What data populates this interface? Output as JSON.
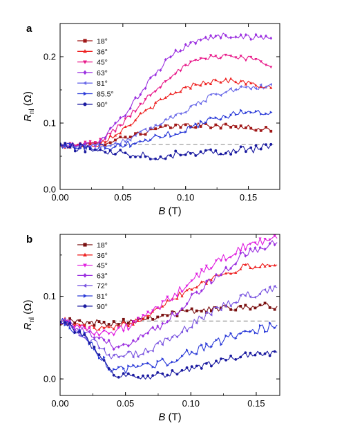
{
  "chart_data": [
    {
      "panel_label": "a",
      "type": "line",
      "xlabel": "B (T)",
      "xlabel_parts": {
        "italic": "B",
        "rest": " (T)"
      },
      "ylabel_parts": {
        "main": "R",
        "sub": "nl",
        "rest": " (Ω)"
      },
      "xlim": [
        0,
        0.175
      ],
      "ylim": [
        0,
        0.25
      ],
      "xticks": [
        0,
        0.05,
        0.1,
        0.15
      ],
      "xtick_labels": [
        "0.00",
        "0.05",
        "0.10",
        "0.15"
      ],
      "yticks": [
        0,
        0.1,
        0.2
      ],
      "ytick_labels": [
        "0.0",
        "0.1",
        "0.2"
      ],
      "legend_position": "top-left",
      "reference_line": {
        "y": 0.068,
        "x_range": [
          0.04,
          0.17
        ],
        "style": "dashed",
        "color": "#9e9e9e"
      },
      "x_range": [
        0,
        0.168
      ],
      "n_points": 85,
      "series": [
        {
          "name": "18°",
          "color": "#a01818",
          "marker": "square",
          "knots": [
            [
              0,
              0.066
            ],
            [
              0.03,
              0.068
            ],
            [
              0.05,
              0.078
            ],
            [
              0.08,
              0.092
            ],
            [
              0.1,
              0.097
            ],
            [
              0.12,
              0.096
            ],
            [
              0.14,
              0.095
            ],
            [
              0.168,
              0.09
            ]
          ],
          "noise": 0.004
        },
        {
          "name": "36°",
          "color": "#ee2222",
          "marker": "triangle",
          "knots": [
            [
              0,
              0.065
            ],
            [
              0.03,
              0.068
            ],
            [
              0.05,
              0.09
            ],
            [
              0.07,
              0.12
            ],
            [
              0.09,
              0.145
            ],
            [
              0.11,
              0.16
            ],
            [
              0.13,
              0.165
            ],
            [
              0.15,
              0.16
            ],
            [
              0.168,
              0.152
            ]
          ],
          "noise": 0.004
        },
        {
          "name": "45°",
          "color": "#e8198a",
          "marker": "triangle-down",
          "knots": [
            [
              0,
              0.066
            ],
            [
              0.03,
              0.07
            ],
            [
              0.05,
              0.1
            ],
            [
              0.07,
              0.14
            ],
            [
              0.09,
              0.175
            ],
            [
              0.11,
              0.195
            ],
            [
              0.13,
              0.202
            ],
            [
              0.15,
              0.198
            ],
            [
              0.168,
              0.188
            ]
          ],
          "noise": 0.004
        },
        {
          "name": "63°",
          "color": "#9b30e0",
          "marker": "diamond",
          "knots": [
            [
              0,
              0.066
            ],
            [
              0.03,
              0.068
            ],
            [
              0.05,
              0.11
            ],
            [
              0.07,
              0.16
            ],
            [
              0.09,
              0.205
            ],
            [
              0.11,
              0.225
            ],
            [
              0.13,
              0.232
            ],
            [
              0.15,
              0.23
            ],
            [
              0.168,
              0.228
            ]
          ],
          "noise": 0.004
        },
        {
          "name": "81°",
          "color": "#6a6ae8",
          "marker": "triangle-left",
          "knots": [
            [
              0,
              0.066
            ],
            [
              0.04,
              0.066
            ],
            [
              0.06,
              0.08
            ],
            [
              0.08,
              0.1
            ],
            [
              0.1,
              0.12
            ],
            [
              0.12,
              0.14
            ],
            [
              0.14,
              0.152
            ],
            [
              0.168,
              0.155
            ]
          ],
          "noise": 0.004
        },
        {
          "name": "85.5°",
          "color": "#2a3ad8",
          "marker": "triangle-right",
          "knots": [
            [
              0,
              0.066
            ],
            [
              0.04,
              0.064
            ],
            [
              0.06,
              0.07
            ],
            [
              0.08,
              0.08
            ],
            [
              0.1,
              0.09
            ],
            [
              0.12,
              0.105
            ],
            [
              0.14,
              0.115
            ],
            [
              0.168,
              0.118
            ]
          ],
          "noise": 0.005
        },
        {
          "name": "90°",
          "color": "#1a1aa0",
          "marker": "circle",
          "knots": [
            [
              0,
              0.066
            ],
            [
              0.03,
              0.06
            ],
            [
              0.05,
              0.055
            ],
            [
              0.08,
              0.05
            ],
            [
              0.1,
              0.055
            ],
            [
              0.13,
              0.058
            ],
            [
              0.15,
              0.06
            ],
            [
              0.168,
              0.065
            ]
          ],
          "noise": 0.006
        }
      ]
    },
    {
      "panel_label": "b",
      "type": "line",
      "xlabel": "B (T)",
      "xlabel_parts": {
        "italic": "B",
        "rest": " (T)"
      },
      "ylabel_parts": {
        "main": "R",
        "sub": "nl",
        "rest": " (Ω)"
      },
      "xlim": [
        0,
        0.168
      ],
      "ylim": [
        -0.02,
        0.175
      ],
      "xticks": [
        0,
        0.05,
        0.1,
        0.15
      ],
      "xtick_labels": [
        "0.00",
        "0.05",
        "0.10",
        "0.15"
      ],
      "yticks": [
        0,
        0.1
      ],
      "ytick_labels": [
        "0.0",
        "0.1"
      ],
      "legend_position": "top-left",
      "reference_line": {
        "y": 0.07,
        "x_range": [
          0.04,
          0.166
        ],
        "style": "dashed",
        "color": "#9e9e9e"
      },
      "x_range": [
        0,
        0.166
      ],
      "n_points": 90,
      "series": [
        {
          "name": "18°",
          "color": "#7a1010",
          "marker": "square",
          "knots": [
            [
              0,
              0.07
            ],
            [
              0.02,
              0.068
            ],
            [
              0.04,
              0.068
            ],
            [
              0.06,
              0.072
            ],
            [
              0.08,
              0.078
            ],
            [
              0.1,
              0.082
            ],
            [
              0.12,
              0.085
            ],
            [
              0.14,
              0.088
            ],
            [
              0.166,
              0.088
            ]
          ],
          "noise": 0.004
        },
        {
          "name": "36°",
          "color": "#ee2222",
          "marker": "triangle",
          "knots": [
            [
              0,
              0.072
            ],
            [
              0.02,
              0.062
            ],
            [
              0.04,
              0.06
            ],
            [
              0.06,
              0.072
            ],
            [
              0.08,
              0.092
            ],
            [
              0.1,
              0.11
            ],
            [
              0.12,
              0.125
            ],
            [
              0.14,
              0.135
            ],
            [
              0.166,
              0.138
            ]
          ],
          "noise": 0.004
        },
        {
          "name": "45°",
          "color": "#e020e0",
          "marker": "triangle-down",
          "knots": [
            [
              0,
              0.072
            ],
            [
              0.02,
              0.06
            ],
            [
              0.04,
              0.055
            ],
            [
              0.06,
              0.07
            ],
            [
              0.08,
              0.092
            ],
            [
              0.1,
              0.118
            ],
            [
              0.12,
              0.142
            ],
            [
              0.14,
              0.16
            ],
            [
              0.166,
              0.17
            ]
          ],
          "noise": 0.005
        },
        {
          "name": "63°",
          "color": "#9b30e0",
          "marker": "diamond",
          "knots": [
            [
              0,
              0.072
            ],
            [
              0.02,
              0.055
            ],
            [
              0.04,
              0.04
            ],
            [
              0.06,
              0.048
            ],
            [
              0.08,
              0.068
            ],
            [
              0.1,
              0.098
            ],
            [
              0.12,
              0.125
            ],
            [
              0.14,
              0.15
            ],
            [
              0.166,
              0.165
            ]
          ],
          "noise": 0.005
        },
        {
          "name": "72°",
          "color": "#7a55e0",
          "marker": "triangle-left",
          "knots": [
            [
              0,
              0.072
            ],
            [
              0.02,
              0.052
            ],
            [
              0.04,
              0.025
            ],
            [
              0.06,
              0.03
            ],
            [
              0.08,
              0.045
            ],
            [
              0.1,
              0.065
            ],
            [
              0.12,
              0.085
            ],
            [
              0.14,
              0.1
            ],
            [
              0.166,
              0.11
            ]
          ],
          "noise": 0.005
        },
        {
          "name": "81°",
          "color": "#2a3ad8",
          "marker": "triangle-right",
          "knots": [
            [
              0,
              0.072
            ],
            [
              0.02,
              0.05
            ],
            [
              0.04,
              0.01
            ],
            [
              0.06,
              0.012
            ],
            [
              0.08,
              0.02
            ],
            [
              0.1,
              0.032
            ],
            [
              0.12,
              0.045
            ],
            [
              0.14,
              0.055
            ],
            [
              0.166,
              0.065
            ]
          ],
          "noise": 0.005
        },
        {
          "name": "90°",
          "color": "#1a1aa0",
          "marker": "circle",
          "knots": [
            [
              0,
              0.072
            ],
            [
              0.02,
              0.05
            ],
            [
              0.04,
              0.005
            ],
            [
              0.06,
              0.002
            ],
            [
              0.08,
              0.005
            ],
            [
              0.1,
              0.012
            ],
            [
              0.12,
              0.02
            ],
            [
              0.14,
              0.028
            ],
            [
              0.166,
              0.032
            ]
          ],
          "noise": 0.004
        }
      ]
    }
  ]
}
